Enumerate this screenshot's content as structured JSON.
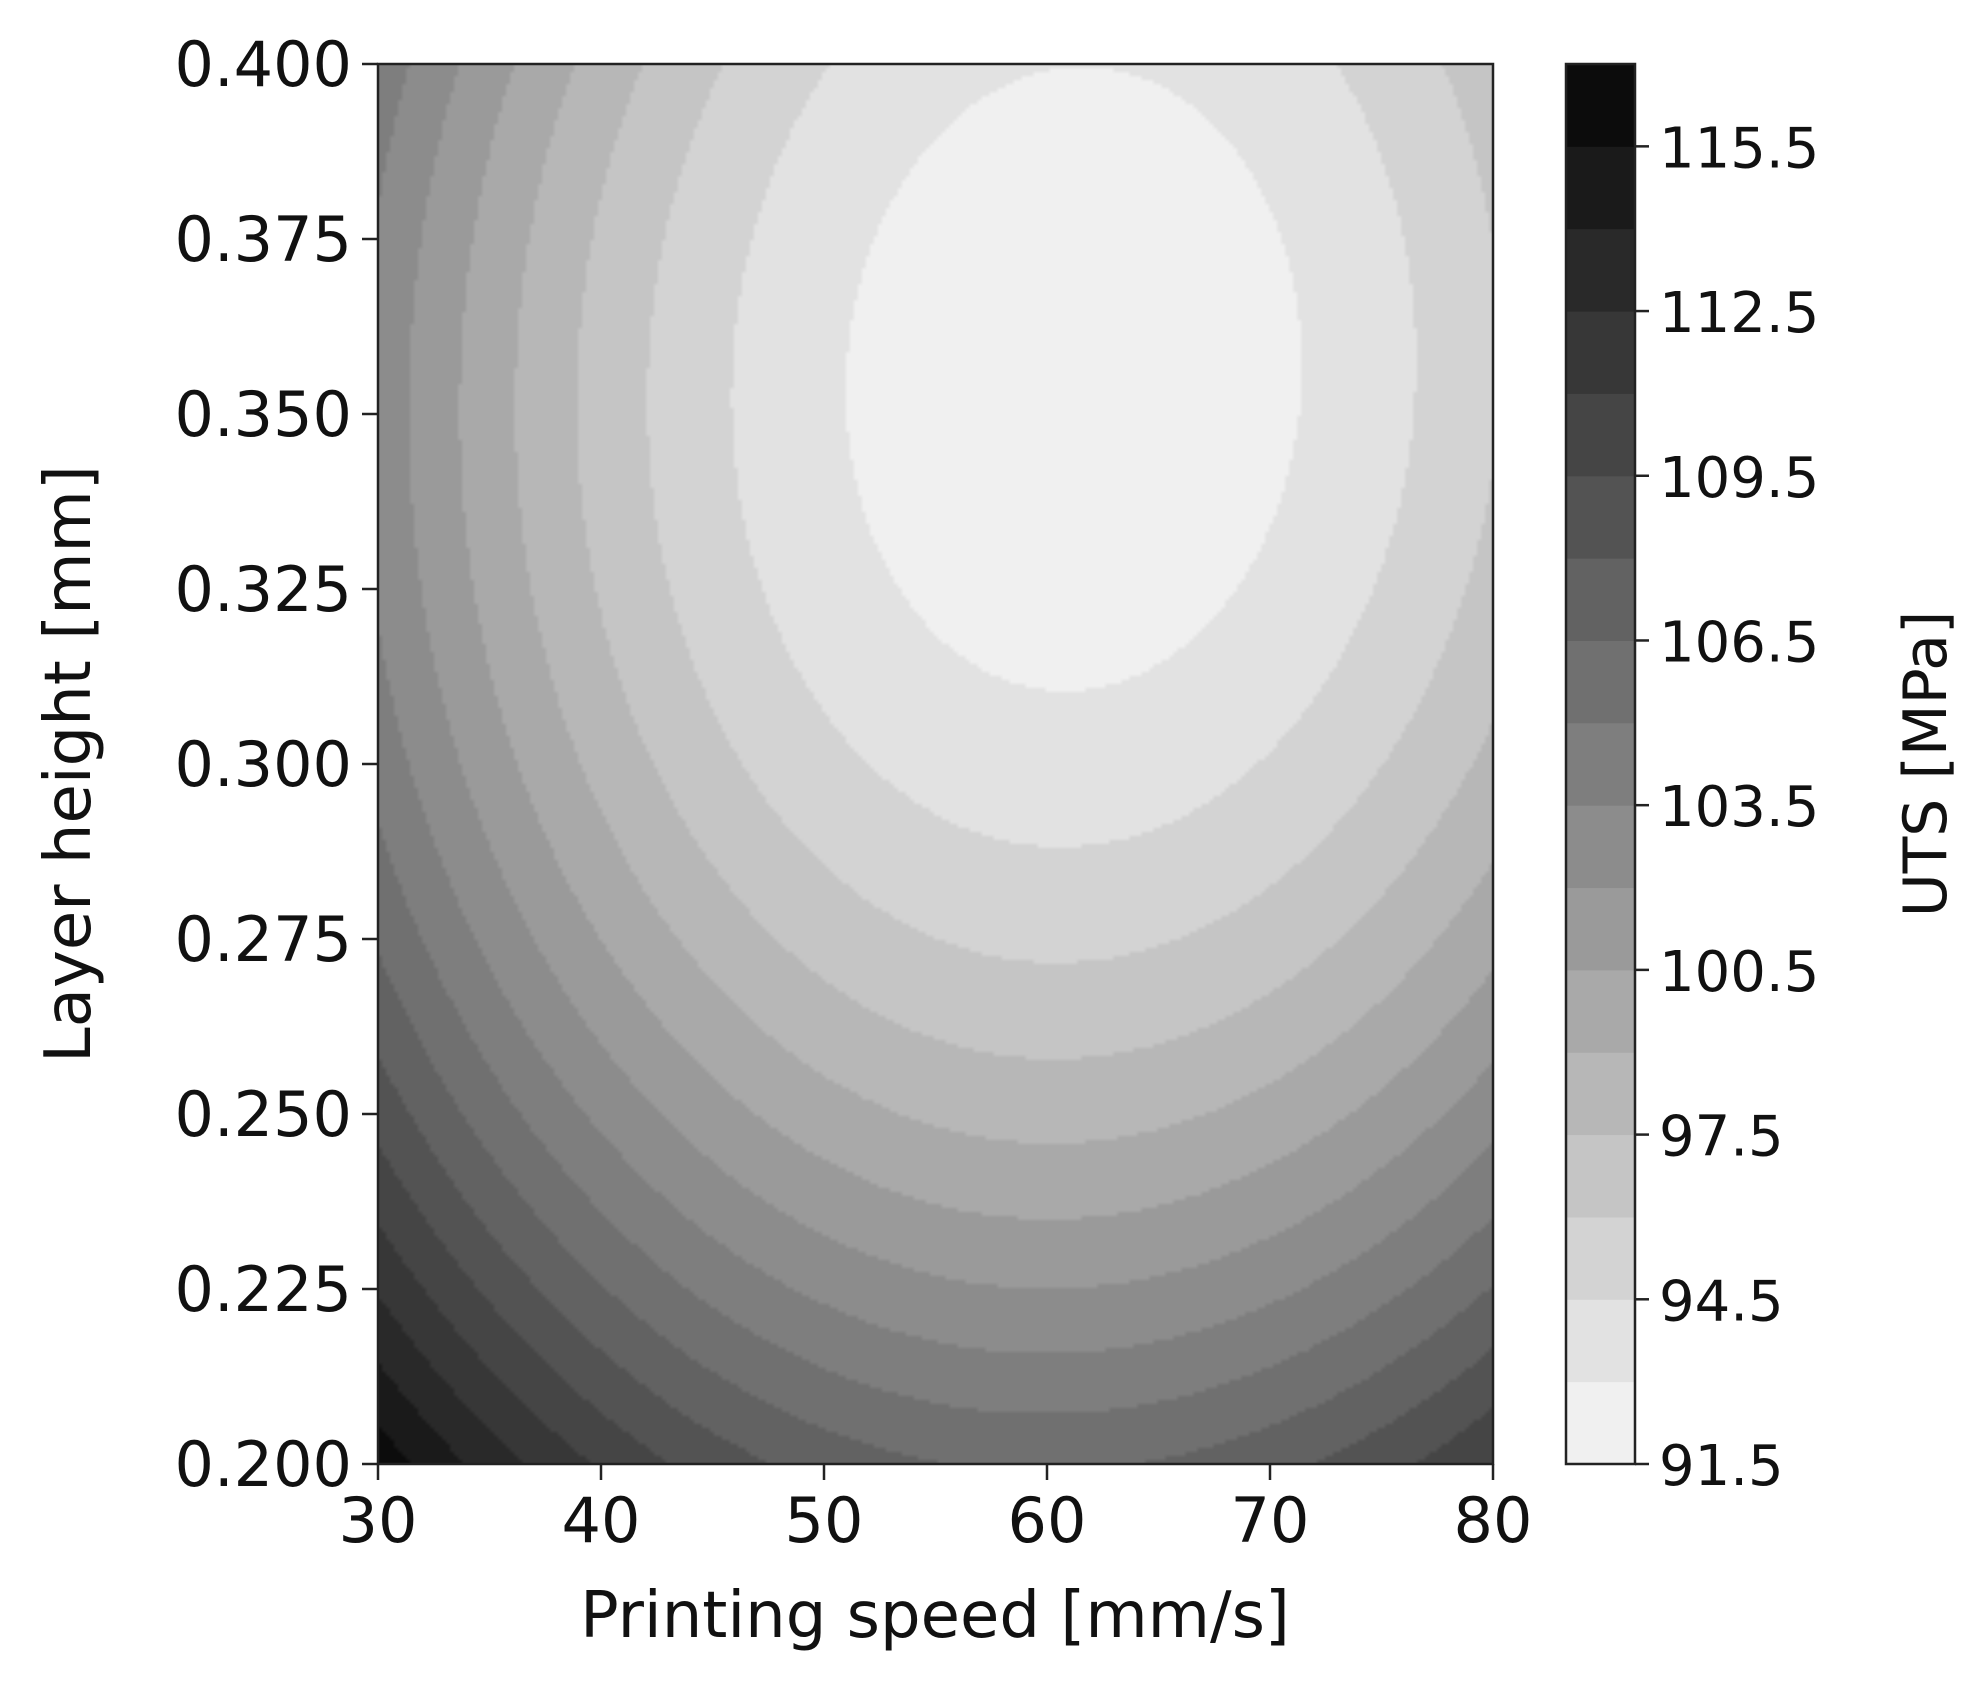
{
  "chart_data": {
    "type": "contour",
    "title": "",
    "xlabel": "Printing speed [mm/s]",
    "ylabel": "Layer height  [mm]",
    "xlim": [
      30,
      80
    ],
    "ylim": [
      0.2,
      0.4
    ],
    "xticks": [
      "30",
      "40",
      "50",
      "60",
      "70",
      "80"
    ],
    "yticks": [
      "0.200",
      "0.225",
      "0.250",
      "0.275",
      "0.300",
      "0.325",
      "0.350",
      "0.375",
      "0.400"
    ],
    "colorbar": {
      "label": "UTS [MPa]",
      "range": [
        91.5,
        117
      ],
      "level_step": 1.5,
      "ticks": [
        "91.5",
        "94.5",
        "97.5",
        "100.5",
        "103.5",
        "106.5",
        "109.5",
        "112.5",
        "115.5"
      ],
      "colormap": "Greys",
      "color_low": "#f7f7f7",
      "color_high": "#050505"
    },
    "surface": {
      "optimum": {
        "x": 61.2,
        "y": 0.355,
        "value": 91.8
      },
      "corner_values": {
        "x30_y0.200": 116.5,
        "x80_y0.200": 111.0,
        "x30_y0.400": 104.5,
        "x80_y0.400": 95.0
      }
    }
  }
}
